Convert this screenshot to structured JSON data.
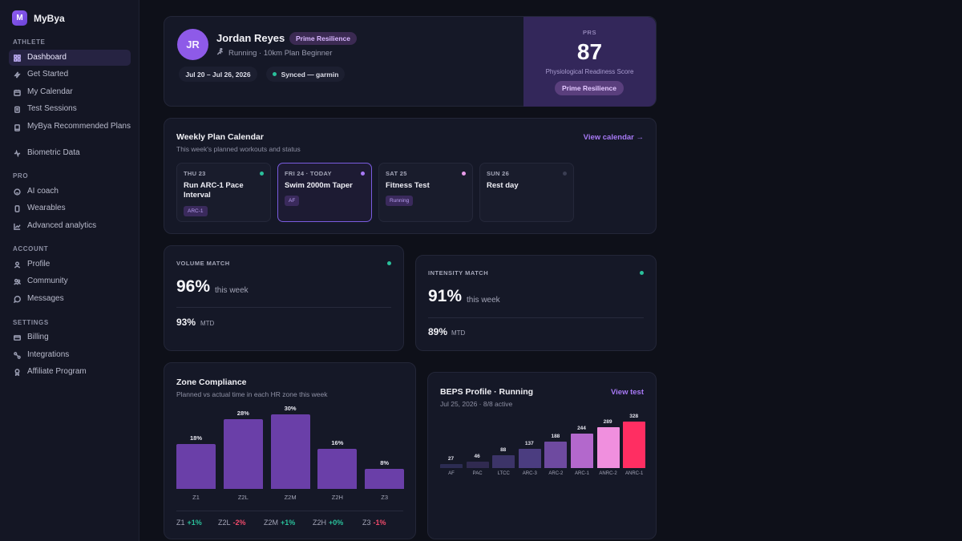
{
  "app": {
    "name": "MyBya",
    "logo_letter": "M"
  },
  "sidebar": {
    "sections": [
      {
        "title": "ATHLETE",
        "items": [
          {
            "label": "Dashboard",
            "icon": "grid-icon",
            "active": true
          },
          {
            "label": "Get Started",
            "icon": "bolt-icon"
          },
          {
            "label": "My Calendar",
            "icon": "calendar-icon"
          },
          {
            "label": "Test Sessions",
            "icon": "clipboard-icon"
          },
          {
            "label": "MyBya Recommended Plans",
            "icon": "book-icon"
          },
          {
            "label": "Biometric Data",
            "icon": "pulse-icon"
          }
        ]
      },
      {
        "title": "PRO",
        "items": [
          {
            "label": "AI coach",
            "icon": "chat-icon"
          },
          {
            "label": "Wearables",
            "icon": "watch-icon"
          },
          {
            "label": "Advanced analytics",
            "icon": "chart-icon"
          }
        ]
      },
      {
        "title": "ACCOUNT",
        "items": [
          {
            "label": "Profile",
            "icon": "user-icon"
          },
          {
            "label": "Community",
            "icon": "users-icon"
          },
          {
            "label": "Messages",
            "icon": "message-icon"
          }
        ]
      },
      {
        "title": "SETTINGS",
        "items": [
          {
            "label": "Billing",
            "icon": "card-icon"
          },
          {
            "label": "Integrations",
            "icon": "link-icon"
          },
          {
            "label": "Affiliate Program",
            "icon": "award-icon"
          }
        ]
      }
    ]
  },
  "profile": {
    "initials": "JR",
    "name": "Jordan Reyes",
    "badge": "Prime Resilience",
    "subtitle": "Running · 10km Plan Beginner",
    "date_range": "Jul 20 – Jul 26, 2026",
    "sync_status": "Synced — garmin",
    "prs": {
      "label": "PRS",
      "value": "87",
      "description": "Physiological Readiness Score",
      "badge": "Prime Resilience"
    }
  },
  "weekly_plan": {
    "title": "Weekly Plan Calendar",
    "subtitle": "This week's planned workouts and status",
    "link": "View calendar →",
    "days": [
      {
        "date": "THU 23",
        "title": "Run ARC-1 Pace Interval",
        "tag": "ARC-1",
        "dot_color": "#2ac09b",
        "today": false
      },
      {
        "date": "FRI 24 · TODAY",
        "title": "Swim 2000m Taper",
        "tag": "AF",
        "dot_color": "#a779f5",
        "today": true
      },
      {
        "date": "SAT 25",
        "title": "Fitness Test",
        "tag": "Running",
        "dot_color": "#e79be8",
        "today": false
      },
      {
        "date": "SUN 26",
        "title": "Rest day",
        "tag": "",
        "dot_color": "#3a3d52",
        "today": false
      }
    ]
  },
  "volume_match": {
    "label": "VOLUME MATCH",
    "value": "96%",
    "suffix": "this week",
    "mtd_value": "93%",
    "mtd_label": "MTD"
  },
  "intensity_match": {
    "label": "INTENSITY MATCH",
    "value": "91%",
    "suffix": "this week",
    "mtd_value": "89%",
    "mtd_label": "MTD"
  },
  "zone_compliance": {
    "title": "Zone Compliance",
    "subtitle": "Planned vs actual time in each HR zone this week",
    "deltas": [
      {
        "zone": "Z1",
        "delta": "+1%",
        "positive": true
      },
      {
        "zone": "Z2L",
        "delta": "-2%",
        "positive": false
      },
      {
        "zone": "Z2M",
        "delta": "+1%",
        "positive": true
      },
      {
        "zone": "Z2H",
        "delta": "+0%",
        "positive": true
      },
      {
        "zone": "Z3",
        "delta": "-1%",
        "positive": false
      }
    ]
  },
  "beps": {
    "title": "BEPS Profile · Running",
    "subtitle": "Jul 25, 2026 · 8/8 active",
    "link": "View test"
  },
  "chart_data": [
    {
      "type": "bar",
      "categories": [
        "Z1",
        "Z2L",
        "Z2M",
        "Z2H",
        "Z3"
      ],
      "values": [
        18,
        28,
        30,
        16,
        8
      ],
      "value_labels": [
        "18%",
        "28%",
        "30%",
        "16%",
        "8%"
      ],
      "ylim": [
        0,
        30
      ],
      "color": "#6a3fa8"
    },
    {
      "type": "bar",
      "categories": [
        "AF",
        "PAC",
        "LTCC",
        "ARC-3",
        "ARC-2",
        "ARC-1",
        "ANRC-2",
        "ANRC-1"
      ],
      "values": [
        27,
        46,
        88,
        137,
        188,
        244,
        289,
        328
      ],
      "ylim": [
        0,
        328
      ],
      "colors": [
        "#2c2c52",
        "#302a50",
        "#3c3468",
        "#4b3d80",
        "#6e4aa0",
        "#b368cc",
        "#f08fde",
        "#ff2e62"
      ]
    }
  ]
}
